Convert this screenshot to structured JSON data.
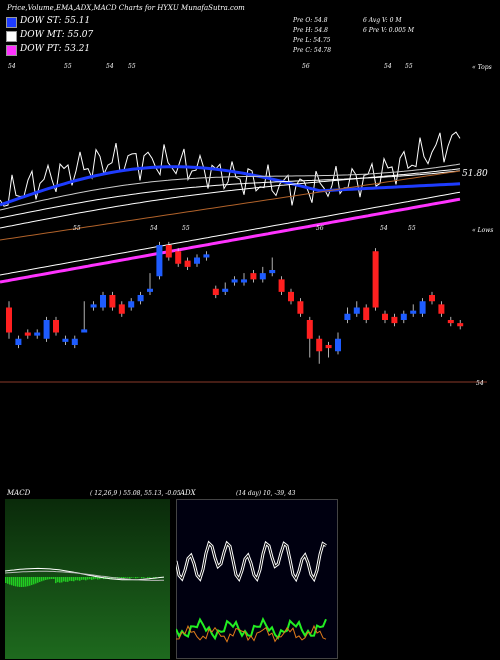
{
  "header": {
    "title": "Price,Volume,EMA,ADX,MACD Charts for HYXU MunafaSutra.com"
  },
  "legend": [
    {
      "label": "DOW ST: 55.11",
      "color": "#1e3cff"
    },
    {
      "label": "DOW MT: 55.07",
      "color": "#ffffff"
    },
    {
      "label": "DOW PT: 53.21",
      "color": "#ff33ff"
    }
  ],
  "stats": {
    "pre_o": "Pre  O: 54.8",
    "pre_h": "Pre  H: 54.8",
    "pre_l": "Pre  L: 54.75",
    "pre_c": "Pre  C: 54.78",
    "avg_v": "6     Avg V: 0  M",
    "pre_v": "6     Pre  V: 0.005 M"
  },
  "price_chart": {
    "top_label": "« Tops",
    "low_label": "« Lows",
    "price_label": "51.80",
    "bottom_label": "54",
    "top_marks": [
      "54",
      "55",
      "54",
      "55",
      "56",
      "54",
      "55"
    ],
    "low_marks": [
      "55",
      "54",
      "55",
      "56",
      "54",
      "55"
    ]
  },
  "macd": {
    "label": "MACD",
    "params": "( 12,26,9 ) 55.08, 55.13, -0.05"
  },
  "adx": {
    "label": "ADX",
    "params": "(14  day) 10,  -39,  43"
  },
  "chart_data": {
    "type": "candlestick",
    "title": "Price,Volume,EMA,ADX,MACD Charts for HYXU MunafaSutra.com",
    "series": [
      {
        "name": "DOW ST",
        "value": 55.11
      },
      {
        "name": "DOW MT",
        "value": 55.07
      },
      {
        "name": "DOW PT",
        "value": 53.21
      }
    ],
    "marked_price": 51.8,
    "colors": {
      "up": "#1e5cff",
      "down": "#ff2020",
      "ema_st": "#1e3cff",
      "ema_mt": "#ffffff",
      "ema_pt": "#ff33ff",
      "ema_long": "#b0622a",
      "macd_hist": "#22cc22",
      "adx_plus": "#22ee22",
      "adx_minus": "#e07a1a"
    },
    "candles": [
      {
        "dir": "down",
        "o": 0.52,
        "c": 0.48,
        "h": 0.53,
        "l": 0.47
      },
      {
        "dir": "up",
        "o": 0.46,
        "c": 0.47,
        "h": 0.475,
        "l": 0.455
      },
      {
        "dir": "down",
        "o": 0.48,
        "c": 0.475,
        "h": 0.485,
        "l": 0.47
      },
      {
        "dir": "up",
        "o": 0.475,
        "c": 0.48,
        "h": 0.485,
        "l": 0.47
      },
      {
        "dir": "up",
        "o": 0.47,
        "c": 0.5,
        "h": 0.505,
        "l": 0.465
      },
      {
        "dir": "down",
        "o": 0.5,
        "c": 0.48,
        "h": 0.505,
        "l": 0.475
      },
      {
        "dir": "up",
        "o": 0.465,
        "c": 0.47,
        "h": 0.475,
        "l": 0.46
      },
      {
        "dir": "up",
        "o": 0.46,
        "c": 0.47,
        "h": 0.475,
        "l": 0.455
      },
      {
        "dir": "up",
        "o": 0.48,
        "c": 0.485,
        "h": 0.53,
        "l": 0.48
      },
      {
        "dir": "up",
        "o": 0.52,
        "c": 0.525,
        "h": 0.53,
        "l": 0.515
      },
      {
        "dir": "up",
        "o": 0.52,
        "c": 0.54,
        "h": 0.545,
        "l": 0.515
      },
      {
        "dir": "down",
        "o": 0.54,
        "c": 0.52,
        "h": 0.545,
        "l": 0.515
      },
      {
        "dir": "down",
        "o": 0.525,
        "c": 0.51,
        "h": 0.53,
        "l": 0.505
      },
      {
        "dir": "up",
        "o": 0.52,
        "c": 0.53,
        "h": 0.535,
        "l": 0.515
      },
      {
        "dir": "up",
        "o": 0.53,
        "c": 0.54,
        "h": 0.545,
        "l": 0.525
      },
      {
        "dir": "up",
        "o": 0.545,
        "c": 0.55,
        "h": 0.575,
        "l": 0.54
      },
      {
        "dir": "up",
        "o": 0.57,
        "c": 0.62,
        "h": 0.625,
        "l": 0.565
      },
      {
        "dir": "down",
        "o": 0.62,
        "c": 0.6,
        "h": 0.625,
        "l": 0.595
      },
      {
        "dir": "down",
        "o": 0.61,
        "c": 0.59,
        "h": 0.615,
        "l": 0.585
      },
      {
        "dir": "down",
        "o": 0.595,
        "c": 0.585,
        "h": 0.6,
        "l": 0.58
      },
      {
        "dir": "up",
        "o": 0.59,
        "c": 0.6,
        "h": 0.605,
        "l": 0.585
      },
      {
        "dir": "up",
        "o": 0.6,
        "c": 0.605,
        "h": 0.61,
        "l": 0.595
      },
      {
        "dir": "down",
        "o": 0.55,
        "c": 0.54,
        "h": 0.555,
        "l": 0.535
      },
      {
        "dir": "up",
        "o": 0.545,
        "c": 0.55,
        "h": 0.56,
        "l": 0.54
      },
      {
        "dir": "up",
        "o": 0.56,
        "c": 0.565,
        "h": 0.57,
        "l": 0.555
      },
      {
        "dir": "up",
        "o": 0.56,
        "c": 0.565,
        "h": 0.575,
        "l": 0.555
      },
      {
        "dir": "down",
        "o": 0.575,
        "c": 0.565,
        "h": 0.58,
        "l": 0.56
      },
      {
        "dir": "up",
        "o": 0.565,
        "c": 0.575,
        "h": 0.585,
        "l": 0.56
      },
      {
        "dir": "up",
        "o": 0.575,
        "c": 0.58,
        "h": 0.6,
        "l": 0.57
      },
      {
        "dir": "down",
        "o": 0.565,
        "c": 0.545,
        "h": 0.57,
        "l": 0.54
      },
      {
        "dir": "down",
        "o": 0.545,
        "c": 0.53,
        "h": 0.55,
        "l": 0.525
      },
      {
        "dir": "down",
        "o": 0.53,
        "c": 0.51,
        "h": 0.535,
        "l": 0.505
      },
      {
        "dir": "down",
        "o": 0.5,
        "c": 0.47,
        "h": 0.505,
        "l": 0.44
      },
      {
        "dir": "down",
        "o": 0.47,
        "c": 0.45,
        "h": 0.475,
        "l": 0.43
      },
      {
        "dir": "down",
        "o": 0.46,
        "c": 0.455,
        "h": 0.465,
        "l": 0.44
      },
      {
        "dir": "up",
        "o": 0.45,
        "c": 0.47,
        "h": 0.48,
        "l": 0.445
      },
      {
        "dir": "up",
        "o": 0.5,
        "c": 0.51,
        "h": 0.52,
        "l": 0.495
      },
      {
        "dir": "up",
        "o": 0.51,
        "c": 0.52,
        "h": 0.53,
        "l": 0.505
      },
      {
        "dir": "down",
        "o": 0.52,
        "c": 0.5,
        "h": 0.525,
        "l": 0.495
      },
      {
        "dir": "down",
        "o": 0.61,
        "c": 0.52,
        "h": 0.615,
        "l": 0.515
      },
      {
        "dir": "down",
        "o": 0.51,
        "c": 0.5,
        "h": 0.515,
        "l": 0.495
      },
      {
        "dir": "down",
        "o": 0.505,
        "c": 0.495,
        "h": 0.51,
        "l": 0.49
      },
      {
        "dir": "up",
        "o": 0.5,
        "c": 0.51,
        "h": 0.515,
        "l": 0.495
      },
      {
        "dir": "up",
        "o": 0.51,
        "c": 0.515,
        "h": 0.525,
        "l": 0.505
      },
      {
        "dir": "up",
        "o": 0.51,
        "c": 0.53,
        "h": 0.535,
        "l": 0.505
      },
      {
        "dir": "down",
        "o": 0.54,
        "c": 0.53,
        "h": 0.545,
        "l": 0.525
      },
      {
        "dir": "down",
        "o": 0.525,
        "c": 0.51,
        "h": 0.53,
        "l": 0.505
      },
      {
        "dir": "down",
        "o": 0.5,
        "c": 0.495,
        "h": 0.505,
        "l": 0.49
      },
      {
        "dir": "down",
        "o": 0.495,
        "c": 0.49,
        "h": 0.5,
        "l": 0.485
      }
    ]
  }
}
